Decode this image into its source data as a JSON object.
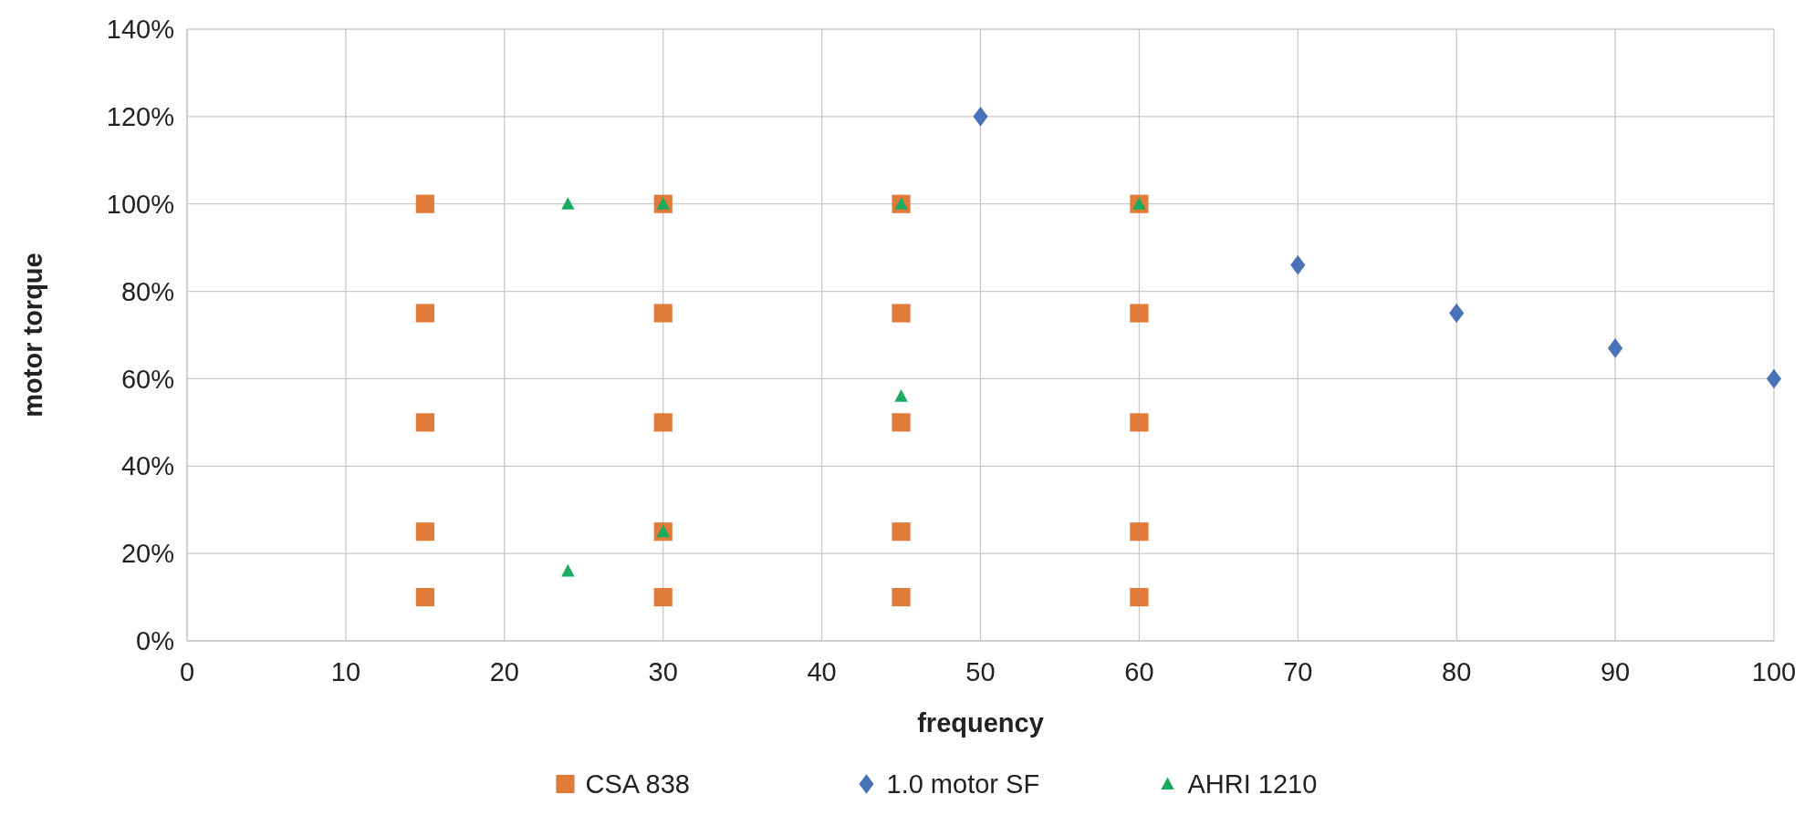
{
  "chart_data": {
    "type": "scatter",
    "xlabel": "frequency",
    "ylabel": "motor torque",
    "xlim": [
      0,
      100
    ],
    "xticks": [
      0,
      10,
      20,
      30,
      40,
      50,
      60,
      70,
      80,
      90,
      100
    ],
    "ylim": [
      0,
      140
    ],
    "yticks": [
      {
        "value": 0,
        "label": "0%"
      },
      {
        "value": 20,
        "label": "20%"
      },
      {
        "value": 40,
        "label": "40%"
      },
      {
        "value": 60,
        "label": "60%"
      },
      {
        "value": 80,
        "label": "80%"
      },
      {
        "value": 100,
        "label": "100%"
      },
      {
        "value": 120,
        "label": "120%"
      },
      {
        "value": 140,
        "label": "140%"
      }
    ],
    "grid": true,
    "legend": "bottom",
    "series": [
      {
        "name": "CSA 838",
        "color": "#e07b39",
        "marker": "square",
        "x": [
          15,
          15,
          15,
          15,
          15,
          30,
          30,
          30,
          30,
          30,
          45,
          45,
          45,
          45,
          45,
          60,
          60,
          60,
          60,
          60
        ],
        "values": [
          10,
          25,
          50,
          75,
          100,
          10,
          25,
          50,
          75,
          100,
          10,
          25,
          50,
          75,
          100,
          10,
          25,
          50,
          75,
          100
        ]
      },
      {
        "name": "1.0 motor SF",
        "color": "#4a72b8",
        "marker": "diamond",
        "x": [
          50,
          70,
          80,
          90,
          100
        ],
        "values": [
          120,
          86,
          75,
          67,
          60
        ]
      },
      {
        "name": "AHRI 1210",
        "color": "#1aab5f",
        "marker": "triangle",
        "x": [
          24,
          30,
          45,
          60,
          45,
          30,
          24
        ],
        "values": [
          100,
          100,
          100,
          100,
          56,
          25,
          16
        ]
      }
    ]
  }
}
